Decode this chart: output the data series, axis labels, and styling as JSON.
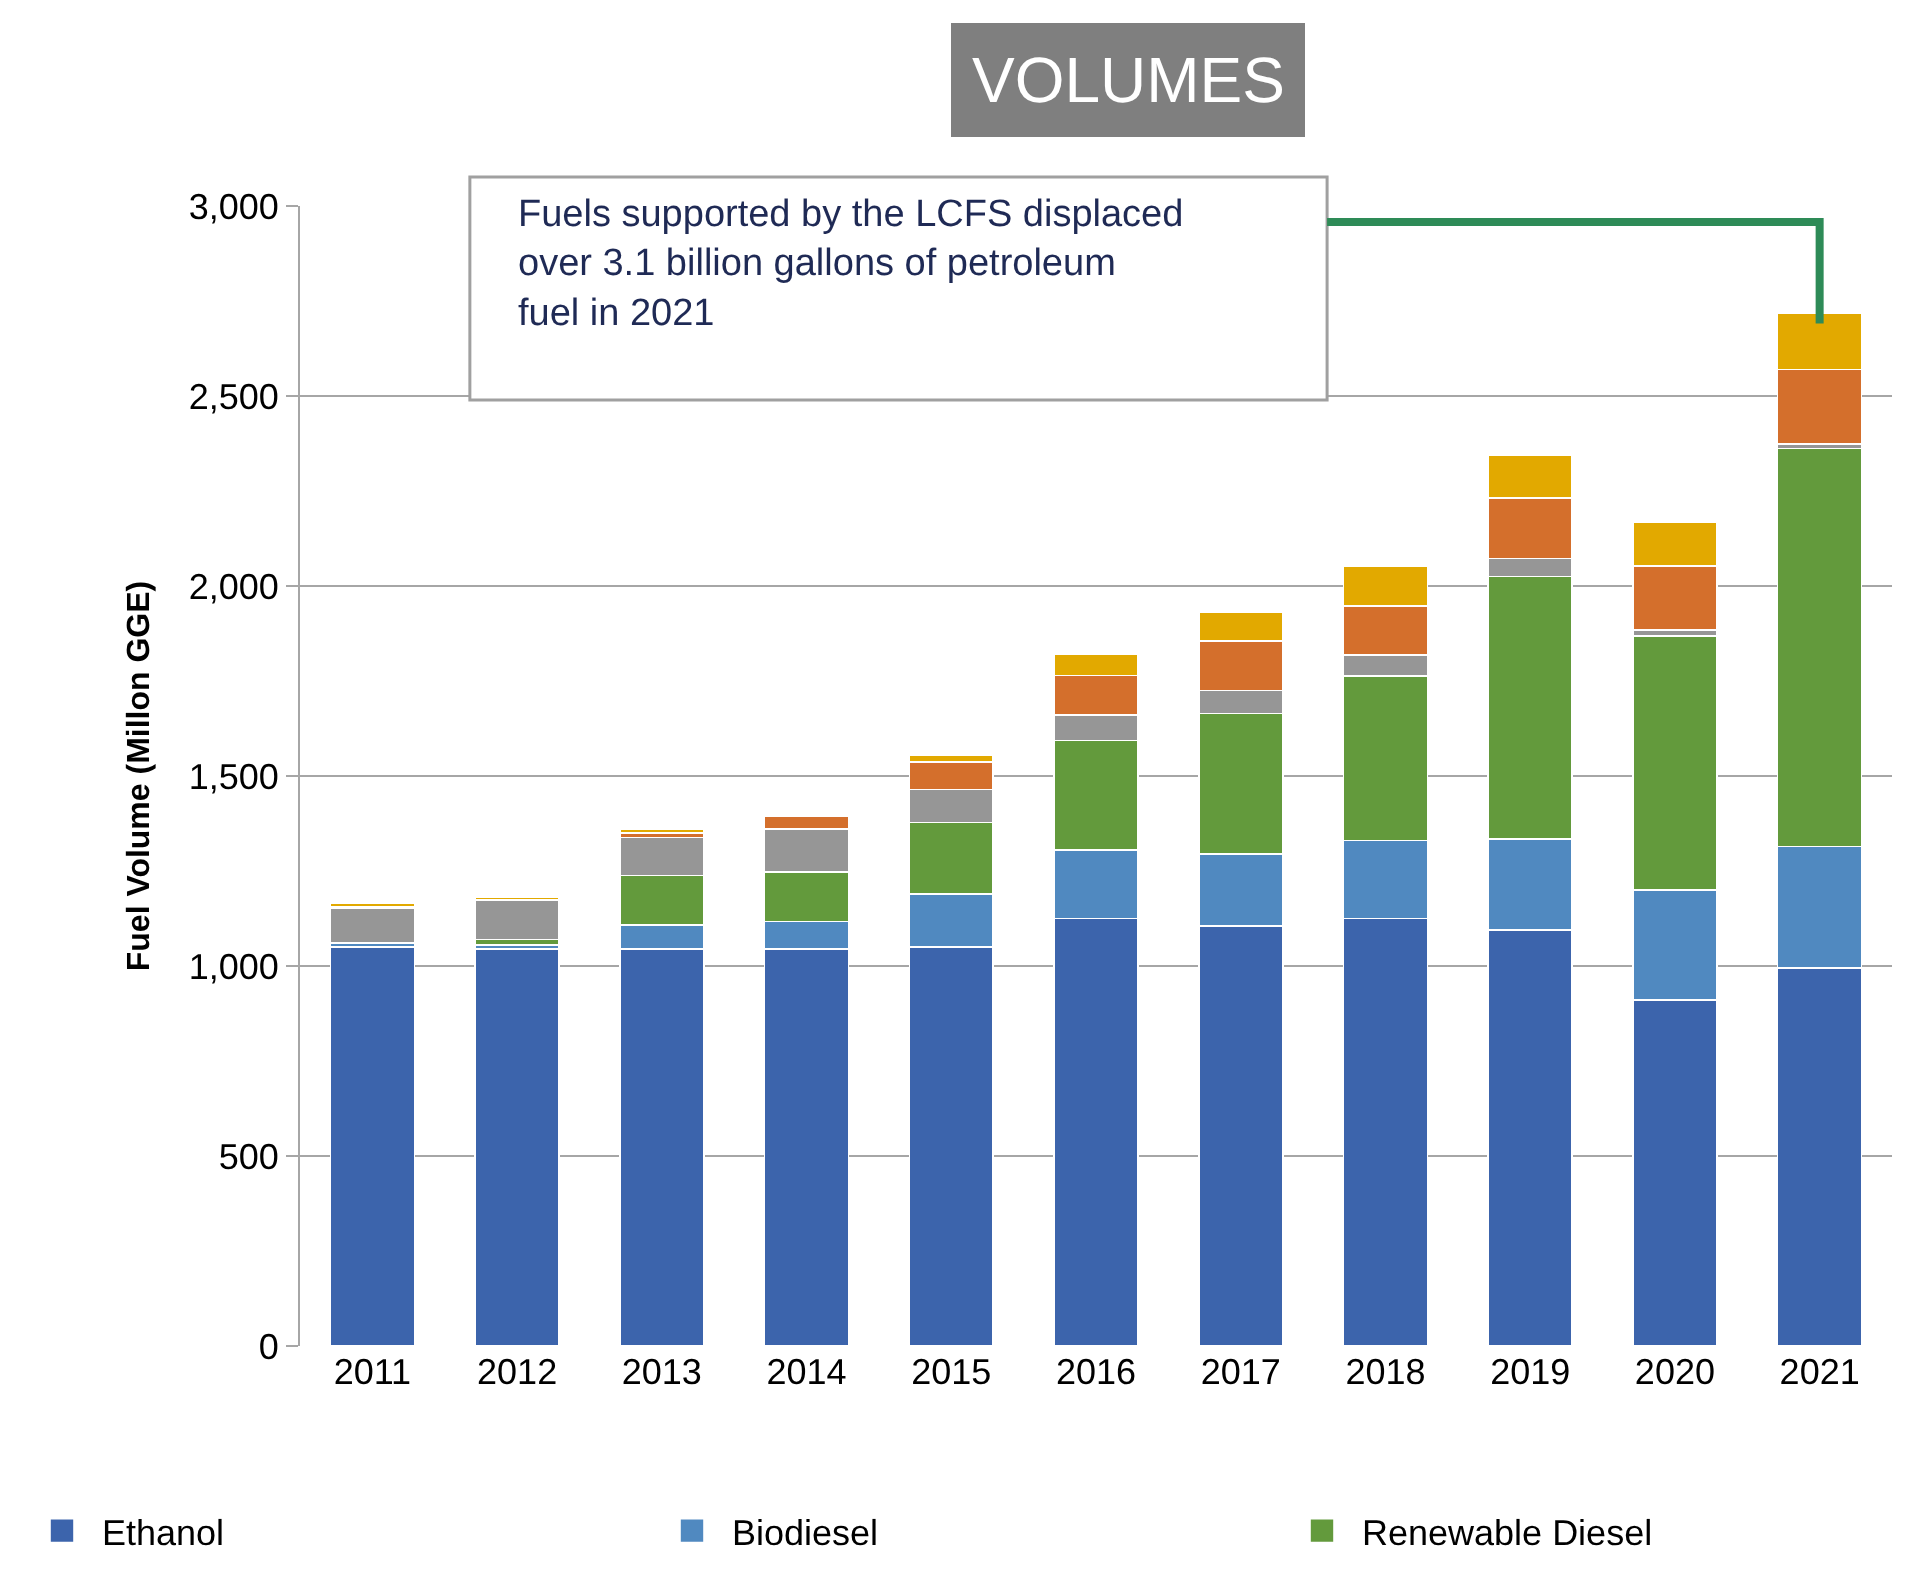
{
  "chart_data": {
    "type": "bar",
    "title": "VOLUMES",
    "ylabel": "Fuel Volume (Millon GGE)",
    "categories": [
      "2011",
      "2012",
      "2013",
      "2014",
      "2015",
      "2016",
      "2017",
      "2018",
      "2019",
      "2020",
      "2021"
    ],
    "stacked": true,
    "series": [
      {
        "name": "Ethanol",
        "color": "#3c64ac",
        "values": [
          1050,
          1045,
          1045,
          1045,
          1050,
          1125,
          1105,
          1125,
          1095,
          910,
          995
        ]
      },
      {
        "name": "Biodiesel",
        "color": "#5089c0",
        "values": [
          10,
          10,
          63,
          72,
          140,
          180,
          190,
          205,
          240,
          290,
          320
        ]
      },
      {
        "name": "Renewable Diesel",
        "color": "#639a3c",
        "values": [
          0,
          15,
          130,
          131,
          188,
          288,
          370,
          433,
          690,
          668,
          1047
        ]
      },
      {
        "color": "#969696",
        "values": [
          92,
          102,
          100,
          113,
          87,
          67,
          60,
          55,
          47,
          17,
          12
        ]
      },
      {
        "color": "#d46f2c",
        "values": [
          5,
          3,
          12,
          32,
          72,
          105,
          130,
          130,
          160,
          167,
          196
        ]
      },
      {
        "color": "#e2a900",
        "values": [
          8,
          5,
          10,
          5,
          17,
          55,
          75,
          103,
          112,
          115,
          147
        ]
      }
    ],
    "ylim": [
      0,
      3000
    ],
    "yticks": [
      {
        "value": 0,
        "label": "0"
      },
      {
        "value": 500,
        "label": "500"
      },
      {
        "value": 1000,
        "label": "1,000"
      },
      {
        "value": 1500,
        "label": "1,500"
      },
      {
        "value": 2000,
        "label": "2,000"
      },
      {
        "value": 2500,
        "label": "2,500"
      },
      {
        "value": 3000,
        "label": "3,000"
      }
    ],
    "grid": "y",
    "legend": "bottom",
    "annotations": [
      "Fuels supported by the LCFS displaced over 3.1 billion gallons of petroleum fuel in 2021"
    ]
  }
}
